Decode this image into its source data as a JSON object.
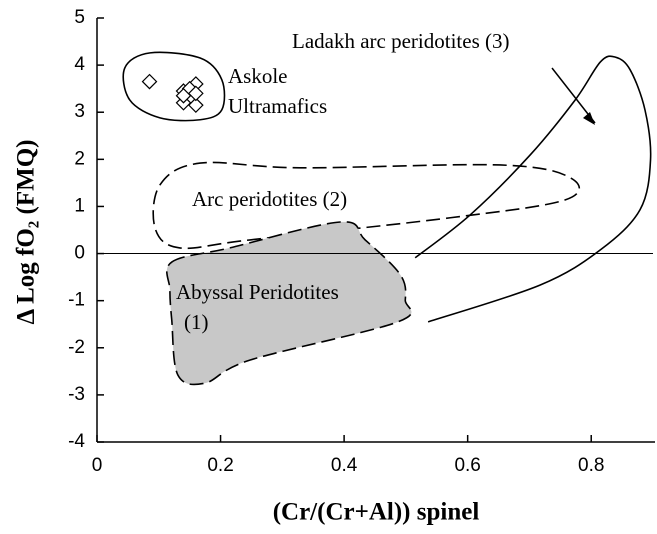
{
  "chart_data": {
    "type": "scatter",
    "xlabel": "(Cr/(Cr+Al)) spinel",
    "ylabel": "Δ Log fO₂ (FMQ)",
    "xlim": [
      0,
      0.9
    ],
    "ylim": [
      -4,
      5
    ],
    "xticks": [
      0,
      0.2,
      0.4,
      0.6,
      0.8
    ],
    "yticks": [
      -4,
      -3,
      -2,
      -1,
      0,
      1,
      2,
      3,
      4,
      5
    ],
    "hline": 0,
    "annotations": [
      "Askole",
      "Ultramafics",
      "Ladakh arc peridotites (3)",
      "Arc peridotites (2)",
      "Abyssal Peridotites",
      "(1)"
    ],
    "x": [
      0.085,
      0.16,
      0.14,
      0.15,
      0.14,
      0.16,
      0.15,
      0.14,
      0.16
    ],
    "values": [
      3.65,
      3.6,
      3.45,
      3.3,
      3.2,
      3.15,
      3.5,
      3.35,
      3.4
    ],
    "color": "#000000",
    "regions": [
      {
        "x": [
          0.045,
          0.086,
          0.167,
          0.202,
          0.202,
          0.167,
          0.102,
          0.053
        ],
        "y": [
          3.94,
          4.26,
          4.15,
          3.69,
          3.05,
          2.84,
          2.88,
          3.26
        ],
        "style": "solid",
        "fill": "none",
        "closed": true
      },
      {
        "x": [
          0.515,
          0.604,
          0.701,
          0.774,
          0.815,
          0.839,
          0.863,
          0.887,
          0.896,
          0.879,
          0.815,
          0.717,
          0.536
        ],
        "y": [
          -0.09,
          0.82,
          2.09,
          3.26,
          4.07,
          4.17,
          3.9,
          3.05,
          1.99,
          0.93,
          0.08,
          -0.67,
          -1.45
        ],
        "style": "solid",
        "fill": "none",
        "closed": false
      },
      {
        "x": [
          0.102,
          0.167,
          0.329,
          0.653,
          0.766,
          0.758,
          0.572,
          0.248,
          0.134,
          0.094
        ],
        "y": [
          1.46,
          1.92,
          1.82,
          1.88,
          1.61,
          1.14,
          0.76,
          0.29,
          0.12,
          0.54
        ],
        "style": "dashed",
        "fill": "none",
        "closed": true
      },
      {
        "x": [
          0.121,
          0.215,
          0.394,
          0.434,
          0.491,
          0.499,
          0.487,
          0.248,
          0.175,
          0.131,
          0.121,
          0.118
        ],
        "y": [
          -0.18,
          0.12,
          0.67,
          0.29,
          -0.45,
          -0.99,
          -1.45,
          -2.26,
          -2.75,
          -2.58,
          -1.41,
          -0.77
        ],
        "style": "dashed",
        "fill": "#c8c8c8",
        "closed": true
      }
    ]
  }
}
